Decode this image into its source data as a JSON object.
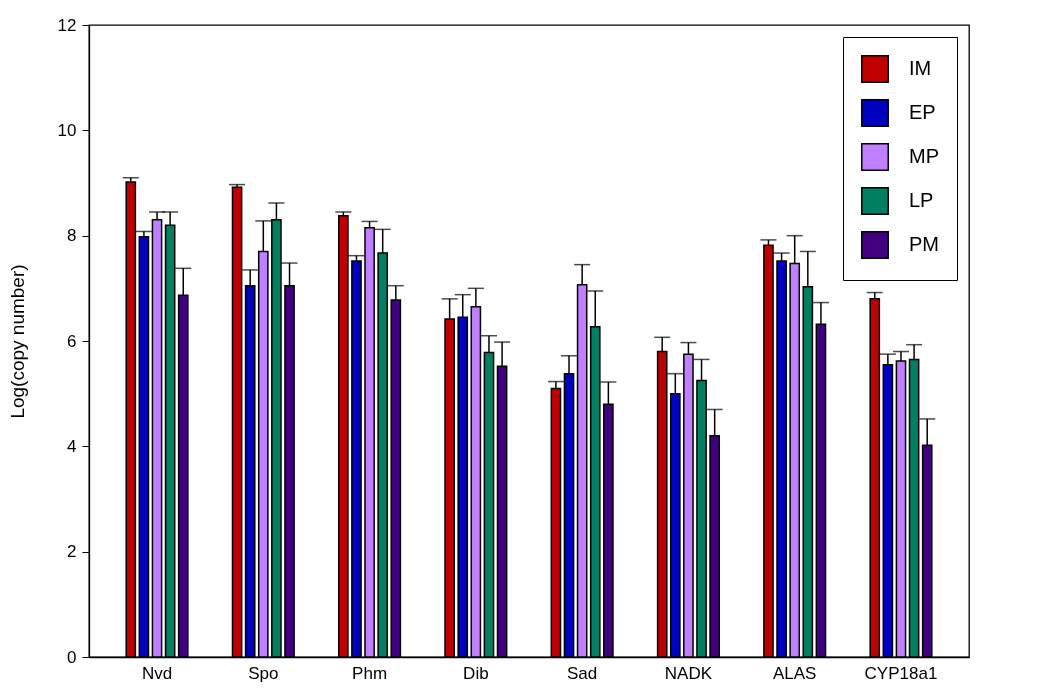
{
  "chart_data": {
    "type": "bar",
    "ylabel": "Log(copy number)",
    "categories": [
      "Nvd",
      "Spo",
      "Phm",
      "Dib",
      "Sad",
      "NADK",
      "ALAS",
      "CYP18a1"
    ],
    "series": [
      {
        "name": "IM",
        "color": "#c00000",
        "values": [
          9.02,
          8.92,
          8.38,
          6.42,
          5.1,
          5.8,
          7.82,
          6.8
        ],
        "errors": [
          [
            9.02,
            9.1
          ],
          [
            8.92,
            8.97
          ],
          [
            8.38,
            8.45
          ],
          [
            6.42,
            6.8
          ],
          [
            5.1,
            5.23
          ],
          [
            5.8,
            6.07
          ],
          [
            7.82,
            7.92
          ],
          [
            6.8,
            6.92
          ]
        ]
      },
      {
        "name": "EP",
        "color": "#0000c0",
        "values": [
          7.98,
          7.05,
          7.52,
          6.45,
          5.38,
          5.0,
          7.52,
          5.55
        ],
        "errors": [
          [
            7.98,
            8.08
          ],
          [
            7.05,
            7.35
          ],
          [
            7.52,
            7.62
          ],
          [
            6.45,
            6.88
          ],
          [
            5.38,
            5.72
          ],
          [
            5.0,
            5.38
          ],
          [
            7.52,
            7.67
          ],
          [
            5.55,
            5.75
          ]
        ]
      },
      {
        "name": "MP",
        "color": "#c080ff",
        "values": [
          8.3,
          7.7,
          8.15,
          6.65,
          7.07,
          5.75,
          7.47,
          5.62
        ],
        "errors": [
          [
            8.3,
            8.45
          ],
          [
            7.7,
            8.28
          ],
          [
            8.15,
            8.27
          ],
          [
            6.65,
            7.0
          ],
          [
            7.07,
            7.45
          ],
          [
            5.75,
            5.97
          ],
          [
            7.47,
            8.0
          ],
          [
            5.62,
            5.8
          ]
        ]
      },
      {
        "name": "LP",
        "color": "#008060",
        "values": [
          8.2,
          8.3,
          7.67,
          5.78,
          6.27,
          5.25,
          7.03,
          5.65
        ],
        "errors": [
          [
            8.2,
            8.45
          ],
          [
            8.3,
            8.62
          ],
          [
            7.67,
            8.12
          ],
          [
            5.78,
            6.1
          ],
          [
            6.27,
            6.95
          ],
          [
            5.25,
            5.65
          ],
          [
            7.03,
            7.7
          ],
          [
            5.65,
            5.93
          ]
        ]
      },
      {
        "name": "PM",
        "color": "#400080",
        "values": [
          6.87,
          7.05,
          6.78,
          5.52,
          4.8,
          4.2,
          6.32,
          4.02
        ],
        "errors": [
          [
            6.87,
            7.38
          ],
          [
            7.05,
            7.48
          ],
          [
            6.78,
            7.05
          ],
          [
            5.52,
            5.98
          ],
          [
            4.8,
            5.22
          ],
          [
            4.2,
            4.7
          ],
          [
            6.32,
            6.73
          ],
          [
            4.02,
            4.52
          ]
        ]
      }
    ],
    "ylim": [
      0,
      12
    ],
    "yticks": [
      0,
      2,
      4,
      6,
      8,
      10,
      12
    ],
    "legend": "top right",
    "grid": false
  }
}
